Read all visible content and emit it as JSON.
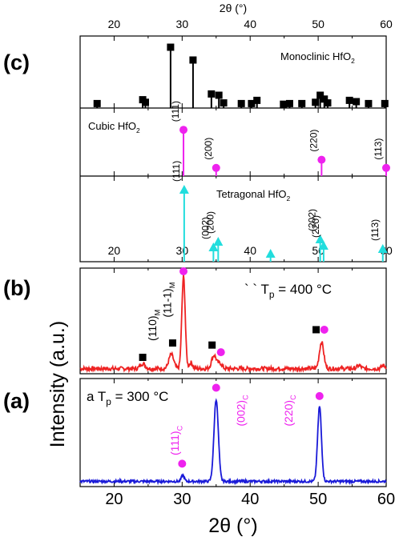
{
  "chart_data": {
    "type": "line",
    "top_axis_label": "2θ (°)",
    "xlabel": "2θ (°)",
    "ylabel": "Intensity (a.u.)",
    "xlim": [
      15,
      60
    ],
    "x_ticks": [
      20,
      30,
      40,
      50,
      60
    ],
    "panel_labels": {
      "c": "(c)",
      "b": "(b)",
      "a": "(a)"
    },
    "reference_patterns": {
      "monoclinic": {
        "name": "Monoclinic HfO",
        "subscript": "2",
        "color": "#000000",
        "marker": "square",
        "peaks": [
          {
            "x": 17.5,
            "h": 0.07
          },
          {
            "x": 24.2,
            "h": 0.13
          },
          {
            "x": 24.6,
            "h": 0.09
          },
          {
            "x": 28.3,
            "h": 0.95
          },
          {
            "x": 31.6,
            "h": 0.75
          },
          {
            "x": 34.3,
            "h": 0.22
          },
          {
            "x": 35.4,
            "h": 0.2
          },
          {
            "x": 36.1,
            "h": 0.08
          },
          {
            "x": 38.7,
            "h": 0.07
          },
          {
            "x": 40.2,
            "h": 0.07
          },
          {
            "x": 41.0,
            "h": 0.12
          },
          {
            "x": 44.9,
            "h": 0.06
          },
          {
            "x": 45.8,
            "h": 0.07
          },
          {
            "x": 47.6,
            "h": 0.07
          },
          {
            "x": 49.6,
            "h": 0.09
          },
          {
            "x": 50.3,
            "h": 0.2
          },
          {
            "x": 50.9,
            "h": 0.14
          },
          {
            "x": 51.4,
            "h": 0.08
          },
          {
            "x": 54.6,
            "h": 0.12
          },
          {
            "x": 55.6,
            "h": 0.1
          },
          {
            "x": 57.4,
            "h": 0.07
          },
          {
            "x": 59.8,
            "h": 0.07
          }
        ]
      },
      "cubic": {
        "name": "Cubic HfO",
        "subscript": "2",
        "color": "#ee22ee",
        "marker": "circle",
        "peaks": [
          {
            "x": 30.2,
            "h": 0.85,
            "label": "(111)"
          },
          {
            "x": 35.0,
            "h": 0.15,
            "label": "(200)"
          },
          {
            "x": 50.5,
            "h": 0.3,
            "label": "(220)"
          },
          {
            "x": 60.0,
            "h": 0.15,
            "label": "(113)"
          }
        ]
      },
      "tetragonal": {
        "name": "Tetragonal HfO",
        "subscript": "2",
        "color": "#22dddd",
        "marker": "triangle",
        "peaks": [
          {
            "x": 30.3,
            "h": 0.9,
            "label": "(111)"
          },
          {
            "x": 34.6,
            "h": 0.18,
            "label": "(002)"
          },
          {
            "x": 35.3,
            "h": 0.25,
            "label": "(200)"
          },
          {
            "x": 43.0,
            "h": 0.1,
            "label": ""
          },
          {
            "x": 50.3,
            "h": 0.28,
            "label": "(202)"
          },
          {
            "x": 50.8,
            "h": 0.2,
            "label": "(220)"
          },
          {
            "x": 59.5,
            "h": 0.16,
            "label": "(113)"
          }
        ]
      }
    },
    "series": [
      {
        "panel": "b",
        "name": "T",
        "name_sub": "p",
        "name_rest": " = 400 °C",
        "name_prefix": "` `",
        "color": "#ee2222",
        "baseline": 0.05,
        "noise": 0.02,
        "peaks": [
          {
            "x": 24.2,
            "h": 0.05,
            "w": 0.5
          },
          {
            "x": 28.4,
            "h": 0.14,
            "w": 0.5
          },
          {
            "x": 30.2,
            "h": 0.9,
            "w": 0.35
          },
          {
            "x": 31.3,
            "h": 0.06,
            "w": 0.35
          },
          {
            "x": 34.7,
            "h": 0.13,
            "w": 0.5
          },
          {
            "x": 35.6,
            "h": 0.05,
            "w": 0.4
          },
          {
            "x": 50.5,
            "h": 0.26,
            "w": 0.45
          },
          {
            "x": 56.0,
            "h": 0.03,
            "w": 0.4
          },
          {
            "x": 59.6,
            "h": 0.03,
            "w": 0.4
          }
        ],
        "markers": [
          {
            "x": 24.2,
            "y": 0.16,
            "shape": "square",
            "color": "#000000"
          },
          {
            "x": 28.6,
            "y": 0.3,
            "shape": "square",
            "color": "#000000"
          },
          {
            "x": 30.2,
            "y": 1.0,
            "shape": "circle",
            "color": "#ee22ee"
          },
          {
            "x": 34.4,
            "y": 0.28,
            "shape": "square",
            "color": "#000000"
          },
          {
            "x": 35.7,
            "y": 0.21,
            "shape": "circle",
            "color": "#ee22ee"
          },
          {
            "x": 49.7,
            "y": 0.43,
            "shape": "square",
            "color": "#000000"
          },
          {
            "x": 50.9,
            "y": 0.43,
            "shape": "circle",
            "color": "#ee22ee"
          }
        ],
        "annotations": [
          {
            "x": 26.2,
            "y": 0.32,
            "main": "(110)",
            "sub": "M",
            "color": "#000000"
          },
          {
            "x": 28.4,
            "y": 0.55,
            "main": "(11-1)",
            "sub": "M",
            "color": "#000000"
          }
        ]
      },
      {
        "panel": "a",
        "name": "T",
        "name_sub": "p",
        "name_rest": " = 300 °C",
        "name_prefix": "a",
        "color": "#1a1ad8",
        "baseline": 0.05,
        "noise": 0.012,
        "peaks": [
          {
            "x": 30.1,
            "h": 0.06,
            "w": 0.3
          },
          {
            "x": 35.0,
            "h": 0.79,
            "w": 0.45
          },
          {
            "x": 50.2,
            "h": 0.72,
            "w": 0.4
          }
        ],
        "markers": [
          {
            "x": 30.0,
            "y": 0.22,
            "shape": "circle",
            "color": "#ee22ee"
          },
          {
            "x": 35.0,
            "y": 0.95,
            "shape": "circle",
            "color": "#ee22ee"
          },
          {
            "x": 50.2,
            "y": 0.87,
            "shape": "circle",
            "color": "#ee22ee"
          }
        ],
        "annotations": [
          {
            "x": 29.5,
            "y": 0.3,
            "main": "(111)",
            "sub": "C",
            "color": "#ee22ee"
          },
          {
            "x": 39.2,
            "y": 0.58,
            "main": "(002)",
            "sub": "C",
            "color": "#ee22ee"
          },
          {
            "x": 46.2,
            "y": 0.58,
            "main": "(220)",
            "sub": "C",
            "color": "#ee22ee"
          }
        ]
      }
    ]
  }
}
